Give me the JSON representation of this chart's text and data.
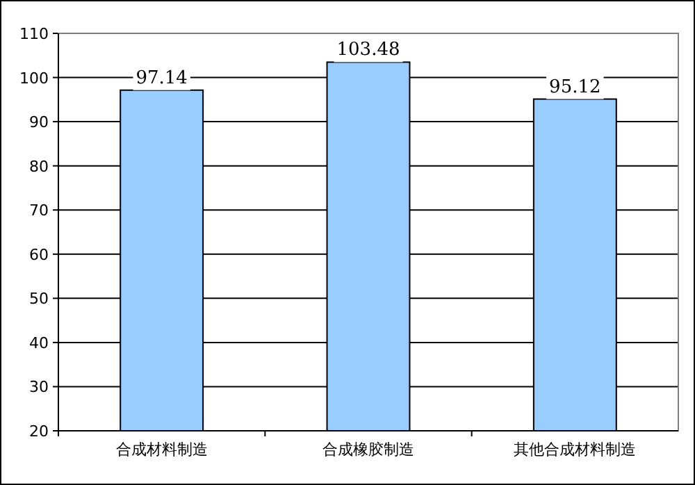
{
  "chart_data": {
    "type": "bar",
    "categories": [
      "合成材料制造",
      "合成橡胶制造",
      "其他合成材料制造"
    ],
    "values": [
      97.14,
      103.48,
      95.12
    ],
    "color": "#99ccff",
    "ylim": [
      20,
      110
    ],
    "yticks": [
      20,
      30,
      40,
      50,
      60,
      70,
      80,
      90,
      100,
      110
    ],
    "grid": "y",
    "data_labels": true
  }
}
